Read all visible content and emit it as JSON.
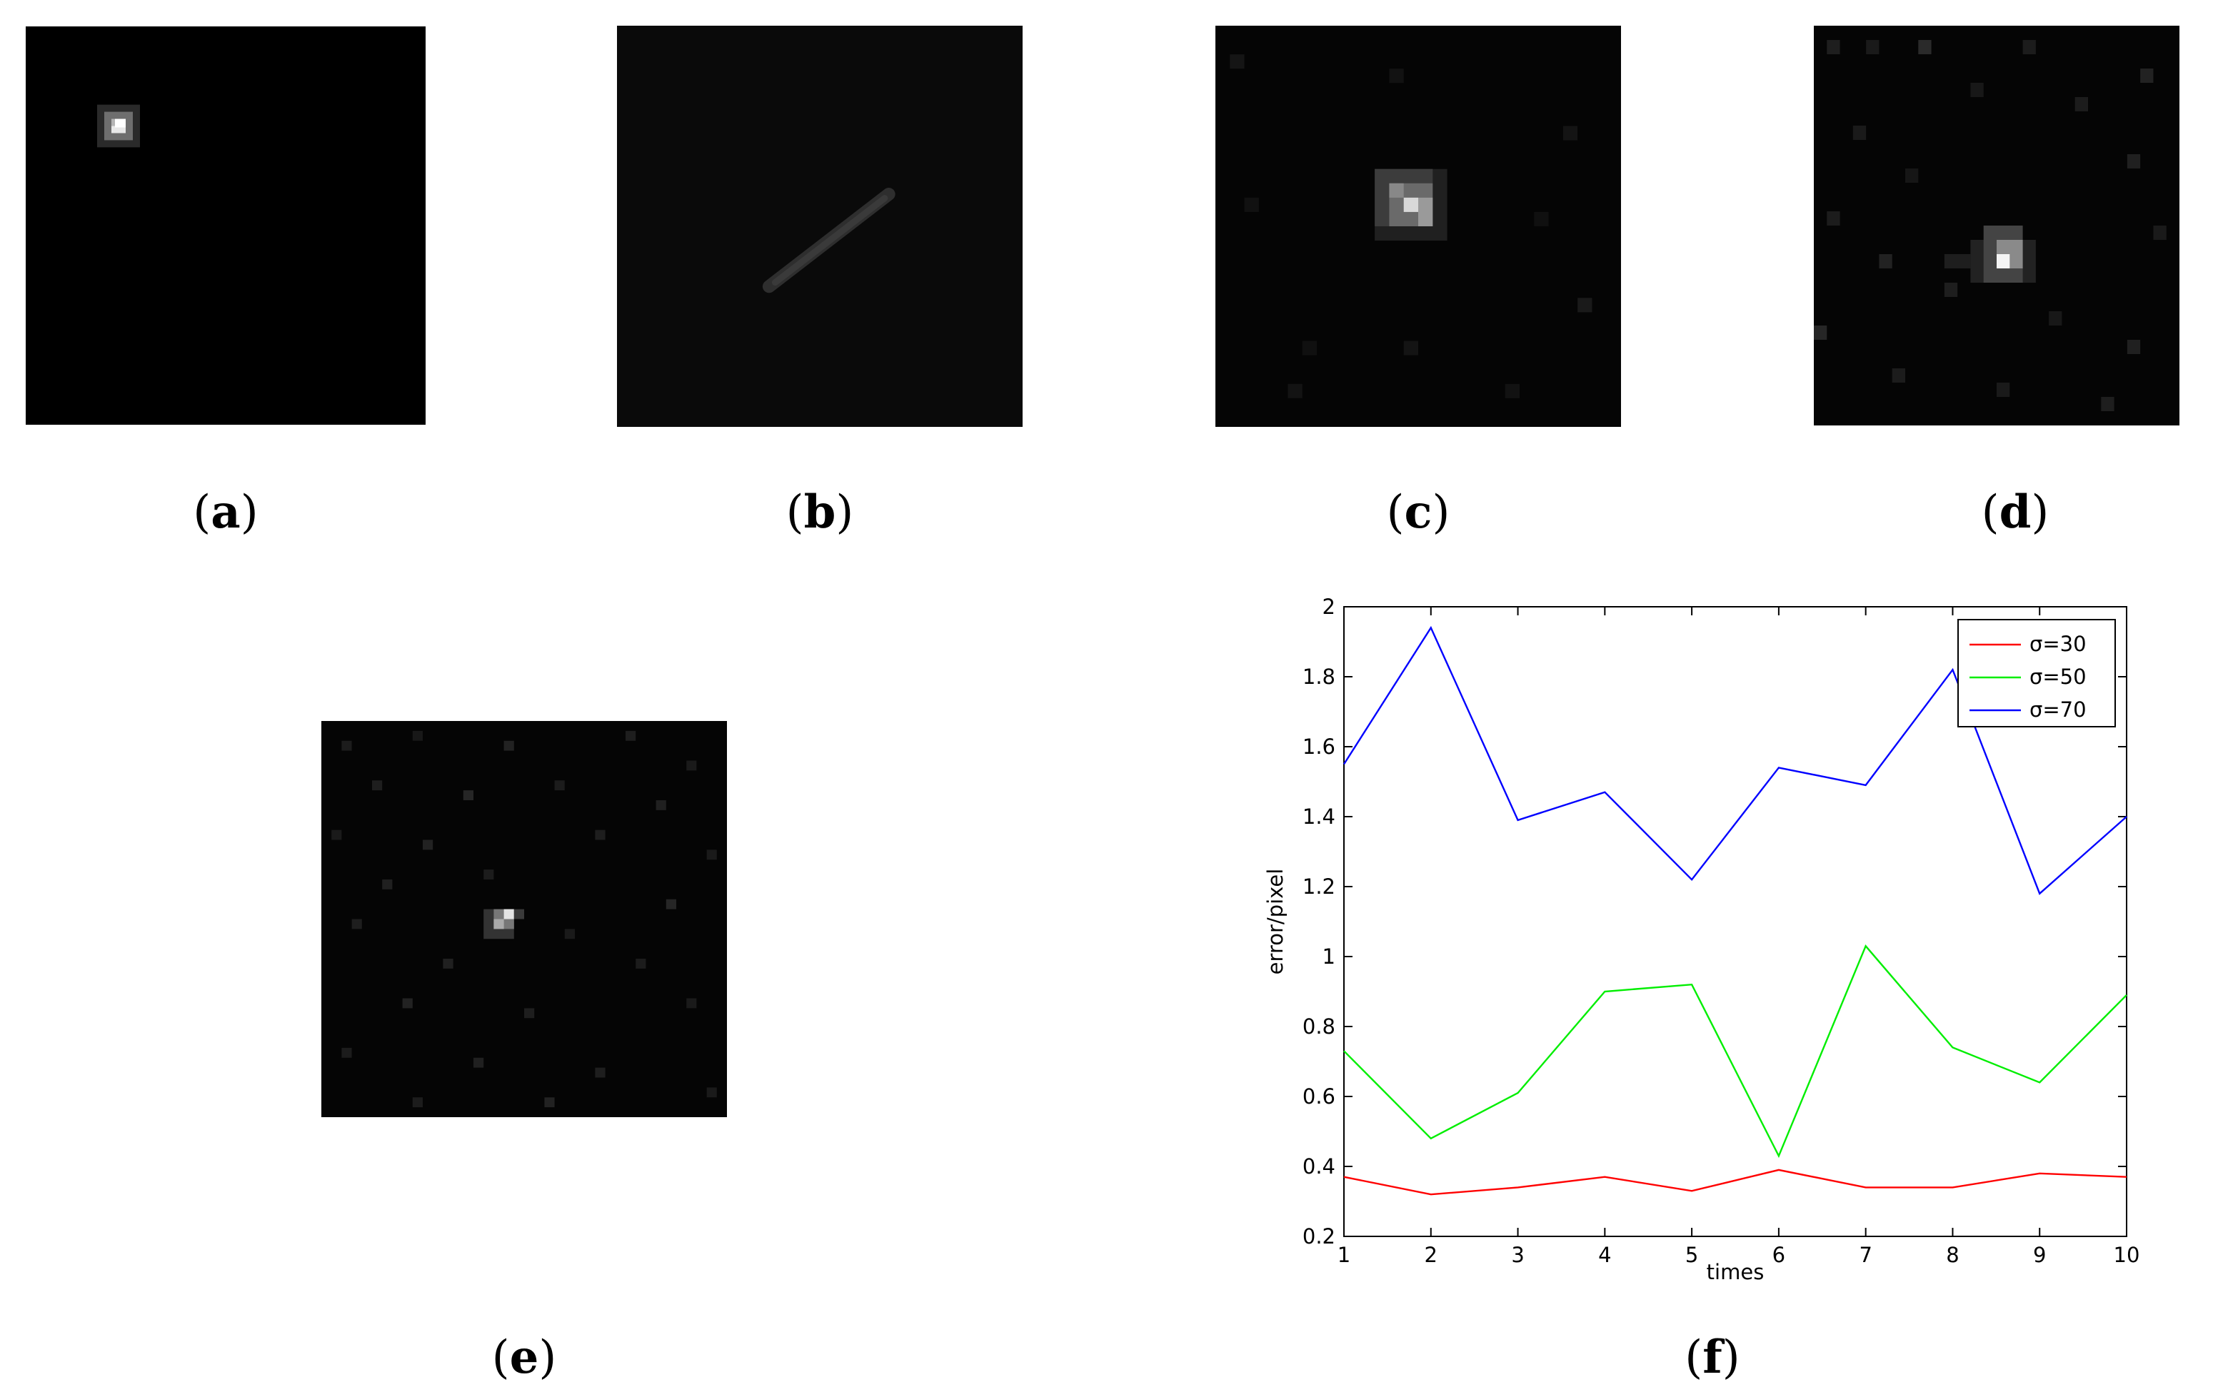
{
  "panels": [
    {
      "id": "a",
      "label": "a"
    },
    {
      "id": "b",
      "label": "b"
    },
    {
      "id": "c",
      "label": "c"
    },
    {
      "id": "d",
      "label": "d"
    },
    {
      "id": "e",
      "label": "e"
    },
    {
      "id": "f",
      "label": "f"
    }
  ],
  "chart_data": {
    "type": "line",
    "title": "",
    "xlabel": "times",
    "ylabel": "error/pixel",
    "x": [
      1,
      2,
      3,
      4,
      5,
      6,
      7,
      8,
      9,
      10
    ],
    "xlim": [
      1,
      10
    ],
    "ylim": [
      0.2,
      2
    ],
    "xticks": [
      1,
      2,
      3,
      4,
      5,
      6,
      7,
      8,
      9,
      10
    ],
    "yticks": [
      0.2,
      0.4,
      0.6,
      0.8,
      1,
      1.2,
      1.4,
      1.6,
      1.8,
      2
    ],
    "grid": false,
    "legend_position": "top-right",
    "series": [
      {
        "name": "σ=30",
        "color": "#ff0000",
        "values": [
          0.37,
          0.32,
          0.34,
          0.37,
          0.33,
          0.39,
          0.34,
          0.34,
          0.38,
          0.37
        ]
      },
      {
        "name": "σ=50",
        "color": "#00ee00",
        "values": [
          0.73,
          0.48,
          0.61,
          0.9,
          0.92,
          0.43,
          1.03,
          0.74,
          0.64,
          0.89
        ]
      },
      {
        "name": "σ=70",
        "color": "#0000ff",
        "values": [
          1.55,
          1.94,
          1.39,
          1.47,
          1.22,
          1.54,
          1.49,
          1.82,
          1.18,
          1.4
        ]
      }
    ]
  }
}
